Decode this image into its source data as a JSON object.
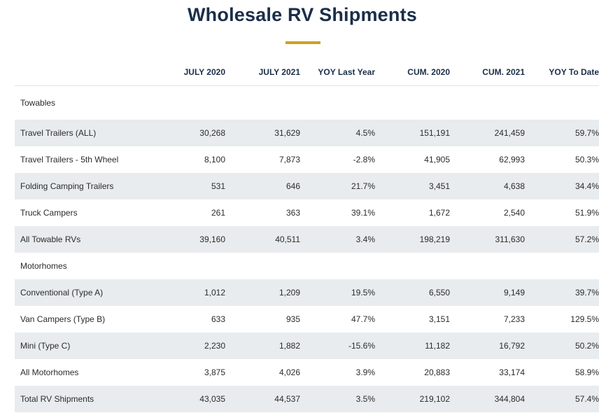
{
  "title": "Wholesale RV Shipments",
  "colors": {
    "title": "#1a2e48",
    "accent": "#c9a227",
    "row_shade": "#e8ecee"
  },
  "headers": [
    "",
    "JULY 2020",
    "JULY 2021",
    "YOY Last Year",
    "CUM. 2020",
    "CUM. 2021",
    "YOY To Date"
  ],
  "sections": {
    "towables": "Towables",
    "motorhomes": "Motorhomes"
  },
  "rows": {
    "travel_trailers_all": [
      "Travel Trailers (ALL)",
      "30,268",
      "31,629",
      "4.5%",
      "151,191",
      "241,459",
      "59.7%"
    ],
    "travel_trailers_5th": [
      "Travel Trailers - 5th Wheel",
      "8,100",
      "7,873",
      "-2.8%",
      "41,905",
      "62,993",
      "50.3%"
    ],
    "folding_camping": [
      "Folding Camping Trailers",
      "531",
      "646",
      "21.7%",
      "3,451",
      "4,638",
      "34.4%"
    ],
    "truck_campers": [
      "Truck Campers",
      "261",
      "363",
      "39.1%",
      "1,672",
      "2,540",
      "51.9%"
    ],
    "all_towable": [
      "All Towable RVs",
      "39,160",
      "40,511",
      "3.4%",
      "198,219",
      "311,630",
      "57.2%"
    ],
    "conventional_a": [
      "Conventional (Type A)",
      "1,012",
      "1,209",
      "19.5%",
      "6,550",
      "9,149",
      "39.7%"
    ],
    "van_campers_b": [
      "Van Campers (Type B)",
      "633",
      "935",
      "47.7%",
      "3,151",
      "7,233",
      "129.5%"
    ],
    "mini_c": [
      "Mini (Type C)",
      "2,230",
      "1,882",
      "-15.6%",
      "11,182",
      "16,792",
      "50.2%"
    ],
    "all_motorhomes": [
      "All Motorhomes",
      "3,875",
      "4,026",
      "3.9%",
      "20,883",
      "33,174",
      "58.9%"
    ],
    "total": [
      "Total RV Shipments",
      "43,035",
      "44,537",
      "3.5%",
      "219,102",
      "344,804",
      "57.4%"
    ]
  }
}
